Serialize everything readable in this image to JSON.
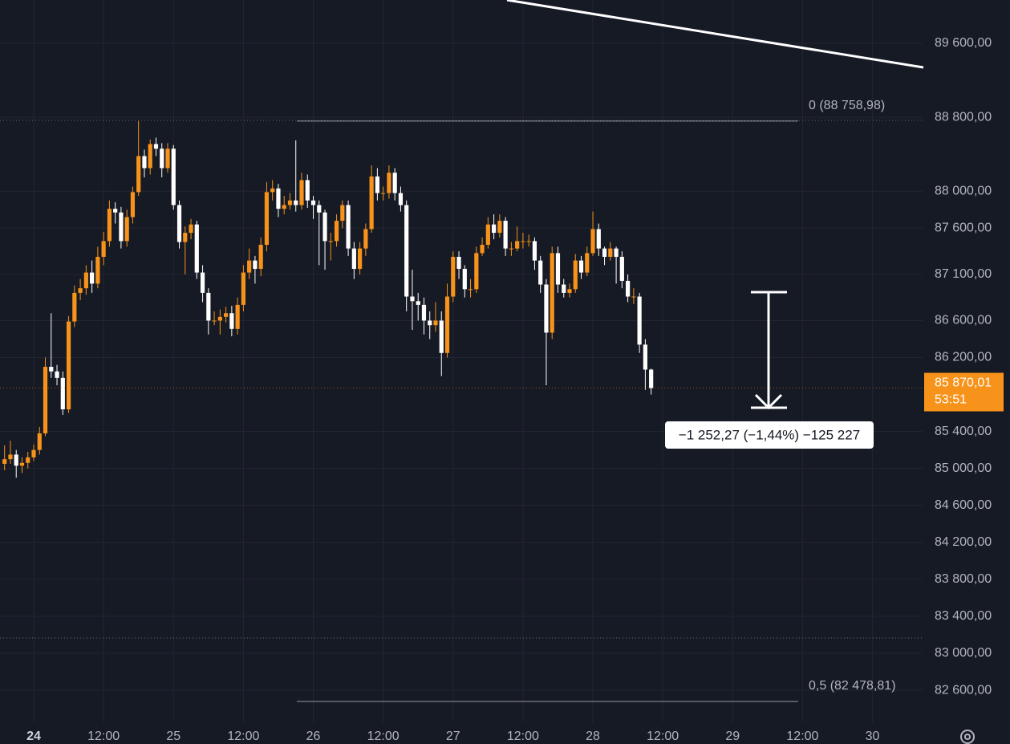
{
  "chart_data": {
    "type": "candlestick",
    "x": [
      -5,
      -4,
      -3,
      -2,
      -1,
      0,
      1,
      2,
      3,
      4,
      5,
      6,
      7,
      8,
      9,
      10,
      11,
      12,
      13,
      14,
      15,
      16,
      17,
      18,
      19,
      20,
      21,
      22,
      23,
      24,
      25,
      26,
      27,
      28,
      29,
      30,
      31,
      32,
      33,
      34,
      35,
      36,
      37,
      38,
      39,
      40,
      41,
      42,
      43,
      44,
      45,
      46,
      47,
      48,
      49,
      50,
      51,
      52,
      53,
      54,
      55,
      56,
      57,
      58,
      59,
      60,
      61,
      62,
      63,
      64,
      65,
      66,
      67,
      68,
      69,
      70,
      71,
      72,
      73,
      74,
      75,
      76,
      77,
      78,
      79,
      80,
      81,
      82,
      83,
      84,
      85,
      86,
      87,
      88,
      89,
      90,
      91,
      92,
      93,
      94,
      95,
      96,
      97,
      98,
      99,
      100,
      101,
      102,
      103,
      104,
      105,
      106
    ],
    "open": [
      85050,
      85100,
      85150,
      85030,
      85060,
      85120,
      85200,
      85380,
      86100,
      86050,
      85980,
      85640,
      86590,
      86900,
      86950,
      87120,
      87000,
      87290,
      87460,
      87810,
      87770,
      87460,
      87720,
      87990,
      88380,
      88250,
      88510,
      88460,
      88250,
      88460,
      87850,
      87450,
      87550,
      87640,
      87120,
      86900,
      86600,
      86600,
      86640,
      86680,
      86510,
      86770,
      87120,
      87250,
      87160,
      87420,
      87990,
      88030,
      87810,
      87850,
      87900,
      87850,
      88120,
      87900,
      87850,
      87770,
      87460,
      87460,
      87680,
      87850,
      87380,
      87160,
      87380,
      87590,
      88160,
      87980,
      87980,
      88200,
      87980,
      87850,
      86860,
      86810,
      86770,
      86600,
      86550,
      86600,
      86250,
      86860,
      87290,
      87160,
      86940,
      86940,
      87330,
      87420,
      87640,
      87550,
      87680,
      87380,
      87380,
      87460,
      87460,
      87460,
      87250,
      86990,
      86470,
      87330,
      86990,
      86900,
      86940,
      87250,
      87120,
      87330,
      87590,
      87380,
      87290,
      87380,
      87290,
      87030,
      86860,
      86860,
      86340,
      86070
    ],
    "high": [
      85250,
      85300,
      85200,
      85120,
      85180,
      85260,
      85450,
      86200,
      86680,
      86120,
      86050,
      86650,
      86980,
      87050,
      87200,
      87250,
      87400,
      87560,
      87900,
      87880,
      87830,
      87800,
      88050,
      88760,
      88450,
      88560,
      88580,
      88520,
      88520,
      88500,
      87900,
      87620,
      87700,
      87680,
      87200,
      86950,
      86700,
      86720,
      86750,
      86760,
      86850,
      87200,
      87380,
      87300,
      87500,
      88100,
      88120,
      88080,
      87950,
      87980,
      88550,
      88200,
      88180,
      87950,
      87900,
      87800,
      87550,
      87750,
      87900,
      87900,
      87450,
      87450,
      87650,
      88280,
      88250,
      88050,
      88280,
      88250,
      88050,
      87900,
      87150,
      86900,
      86850,
      86700,
      86800,
      86700,
      87000,
      87350,
      87350,
      87200,
      87050,
      87400,
      87500,
      87720,
      87750,
      87750,
      87720,
      87450,
      87620,
      87550,
      87530,
      87500,
      87300,
      87050,
      87400,
      87400,
      87050,
      87000,
      87320,
      87300,
      87400,
      87780,
      87650,
      87400,
      87450,
      87400,
      87350,
      87100,
      86950,
      86900,
      86400,
      86080
    ],
    "low": [
      84980,
      85050,
      84900,
      84950,
      85000,
      85080,
      85150,
      85350,
      85980,
      85900,
      85580,
      85600,
      86530,
      86820,
      86880,
      86900,
      86950,
      87200,
      87400,
      87650,
      87380,
      87400,
      87650,
      87950,
      88150,
      88180,
      88380,
      88150,
      88200,
      87800,
      87380,
      87100,
      87480,
      87050,
      86800,
      86450,
      86550,
      86450,
      86580,
      86430,
      86450,
      86700,
      87050,
      87000,
      87080,
      87350,
      87900,
      87720,
      87750,
      87800,
      87780,
      87800,
      87820,
      87700,
      87200,
      87150,
      87250,
      87400,
      87600,
      87300,
      87050,
      87100,
      87300,
      87550,
      87900,
      87900,
      87920,
      87900,
      87780,
      86700,
      86500,
      86600,
      86450,
      86400,
      86480,
      86000,
      86200,
      86800,
      87050,
      86850,
      86850,
      86900,
      87300,
      87380,
      87480,
      87500,
      87300,
      87300,
      87350,
      87380,
      87400,
      87150,
      86900,
      85900,
      86400,
      86900,
      86850,
      86850,
      86900,
      87050,
      87080,
      87300,
      87300,
      87200,
      87250,
      87000,
      86950,
      86800,
      86780,
      86250,
      85850,
      85800
    ],
    "close": [
      85100,
      85150,
      85030,
      85060,
      85120,
      85200,
      85380,
      86100,
      86050,
      85980,
      85640,
      86590,
      86900,
      86950,
      87120,
      87000,
      87290,
      87460,
      87810,
      87770,
      87460,
      87720,
      87990,
      88380,
      88250,
      88510,
      88460,
      88250,
      88460,
      87850,
      87450,
      87550,
      87640,
      87120,
      86900,
      86600,
      86600,
      86640,
      86680,
      86510,
      86770,
      87120,
      87250,
      87160,
      87420,
      87990,
      88030,
      87810,
      87850,
      87900,
      87850,
      88120,
      87900,
      87850,
      87770,
      87460,
      87460,
      87680,
      87850,
      87380,
      87160,
      87380,
      87590,
      88160,
      87980,
      87980,
      88200,
      87980,
      87850,
      86860,
      86810,
      86770,
      86600,
      86550,
      86600,
      86250,
      86860,
      87290,
      87160,
      86940,
      86940,
      87330,
      87420,
      87640,
      87550,
      87680,
      87380,
      87380,
      87460,
      87460,
      87460,
      87250,
      86990,
      86470,
      87330,
      86990,
      86900,
      86940,
      87250,
      87120,
      87330,
      87590,
      87380,
      87290,
      87380,
      87290,
      87030,
      86860,
      86860,
      86340,
      86070,
      85870.01
    ],
    "up_color": "#f7931a",
    "down_color": "#ffffff",
    "grid": true,
    "xlim": [
      -5.785,
      152.6
    ],
    "ylim": [
      82253,
      90069
    ],
    "xticks": [
      {
        "value": 0,
        "label": "24"
      },
      {
        "value": 12,
        "label": "12:00"
      },
      {
        "value": 24,
        "label": "25"
      },
      {
        "value": 36,
        "label": "12:00"
      },
      {
        "value": 48,
        "label": "26"
      },
      {
        "value": 60,
        "label": "12:00"
      },
      {
        "value": 72,
        "label": "27"
      },
      {
        "value": 84,
        "label": "12:00"
      },
      {
        "value": 96,
        "label": "28"
      },
      {
        "value": 108,
        "label": "12:00"
      },
      {
        "value": 120,
        "label": "29"
      },
      {
        "value": 132,
        "label": "12:00"
      },
      {
        "value": 144,
        "label": "30"
      }
    ],
    "yticks": [
      {
        "value": 89600,
        "label": "89 600,00"
      },
      {
        "value": 88800,
        "label": "88 800,00"
      },
      {
        "value": 88000,
        "label": "88 000,00"
      },
      {
        "value": 87600,
        "label": "87 600,00"
      },
      {
        "value": 87100,
        "label": "87 100,00"
      },
      {
        "value": 86600,
        "label": "86 600,00"
      },
      {
        "value": 86200,
        "label": "86 200,00"
      },
      {
        "value": 85400,
        "label": "85 400,00"
      },
      {
        "value": 85000,
        "label": "85 000,00"
      },
      {
        "value": 84600,
        "label": "84 600,00"
      },
      {
        "value": 84200,
        "label": "84 200,00"
      },
      {
        "value": 83800,
        "label": "83 800,00"
      },
      {
        "value": 83400,
        "label": "83 400,00"
      },
      {
        "value": 83000,
        "label": "83 000,00"
      },
      {
        "value": 82600,
        "label": "82 600,00"
      }
    ],
    "last_price": {
      "value": 85870.01,
      "label": "85 870,01"
    },
    "countdown": "53:51",
    "fib_levels": [
      {
        "value": 88758.98,
        "label": "0 (88 758,98)"
      },
      {
        "value": 82478.81,
        "label": "0,5 (82 478,81)"
      }
    ],
    "measure_label": "−1 252,27 (−1,44%) −125 227"
  }
}
